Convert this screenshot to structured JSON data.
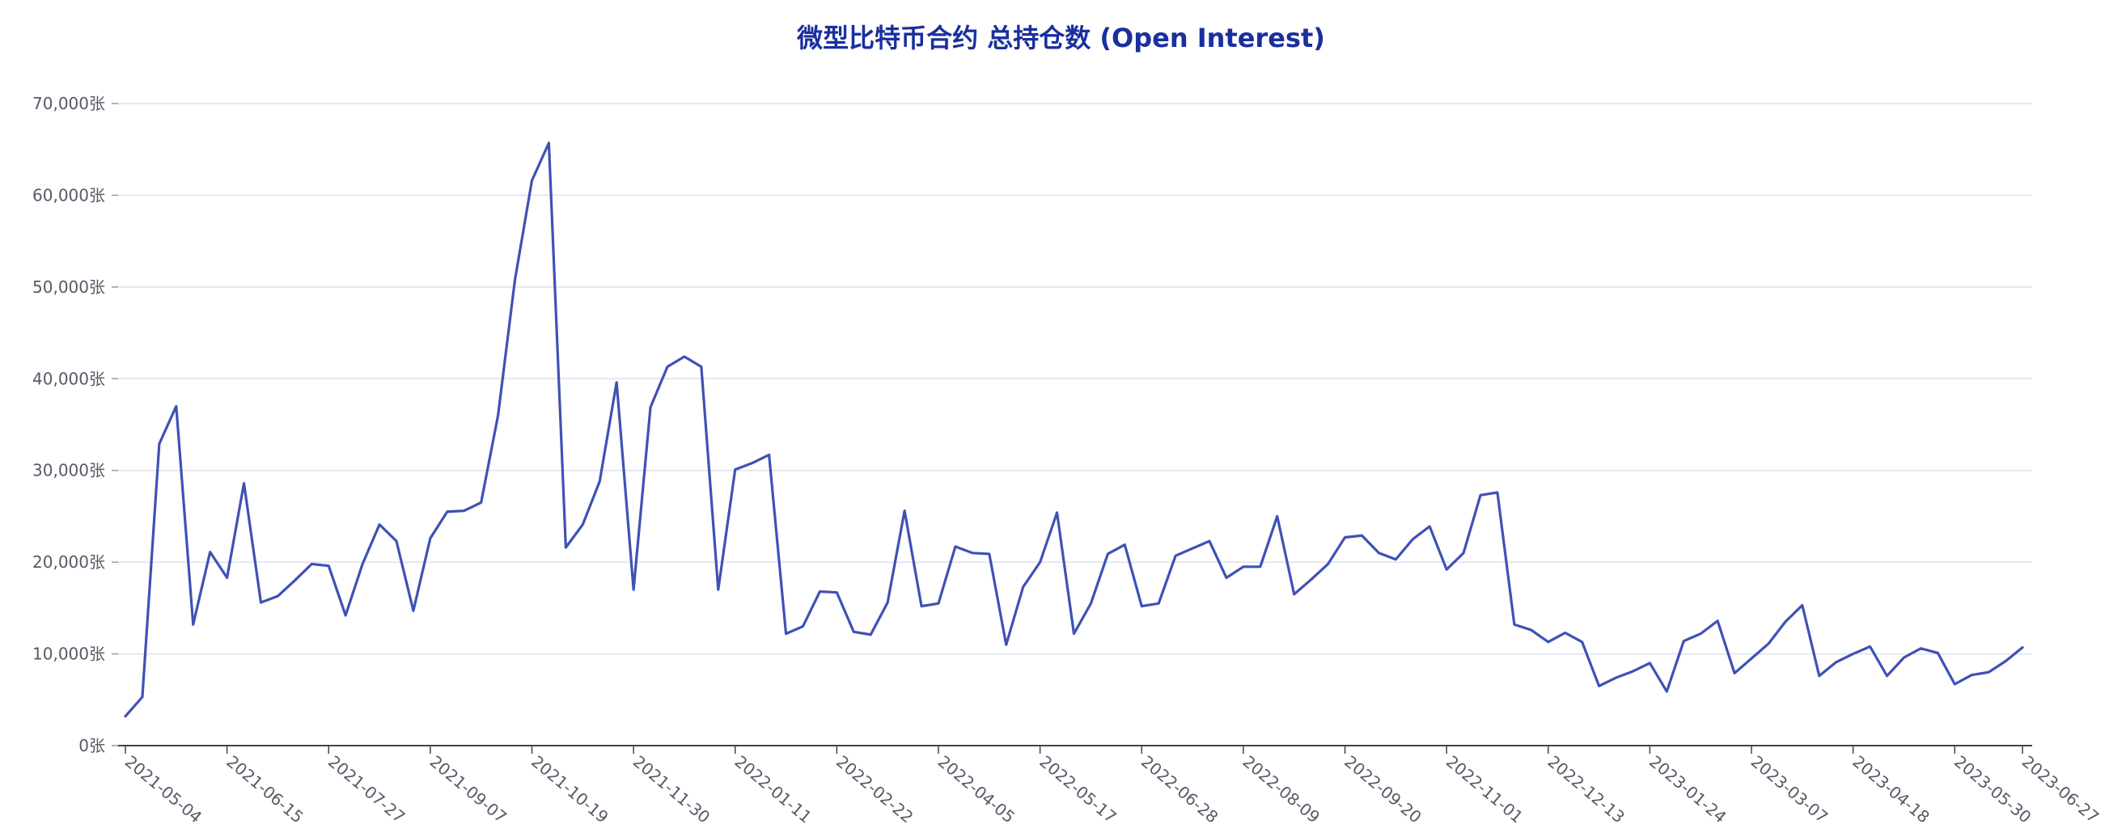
{
  "chart_data": {
    "type": "line",
    "title": "微型比特币合约 总持仓数 (Open Interest)",
    "xlabel": "",
    "ylabel": "",
    "y_unit": "张",
    "ylim": [
      0,
      70000
    ],
    "y_ticks": [
      "0张",
      "10,000张",
      "20,000张",
      "30,000张",
      "40,000张",
      "50,000张",
      "60,000张",
      "70,000张"
    ],
    "y_tick_values": [
      0,
      10000,
      20000,
      30000,
      40000,
      50000,
      60000,
      70000
    ],
    "grid": true,
    "x_ticks": [
      "2021-05-04",
      "2021-06-15",
      "2021-07-27",
      "2021-09-07",
      "2021-10-19",
      "2021-11-30",
      "2022-01-11",
      "2022-02-22",
      "2022-04-05",
      "2022-05-17",
      "2022-06-28",
      "2022-08-09",
      "2022-09-20",
      "2022-11-01",
      "2022-12-13",
      "2023-01-24",
      "2023-03-07",
      "2023-04-18",
      "2023-05-30",
      "2023-06-27"
    ],
    "x_start": "2021-05-04",
    "x_interval_days": 7,
    "line_color": "#3f51b5",
    "series": [
      {
        "values": [
          3200,
          5300,
          32900,
          37000,
          13200,
          21100,
          18300,
          28600,
          15600,
          16300,
          18000,
          19800,
          19600,
          14200,
          19800,
          24100,
          22300,
          14700,
          22600,
          25500,
          25600,
          26500,
          36000,
          50800,
          61600,
          65700,
          21600,
          24100,
          28800,
          39600,
          17000,
          36900,
          41300,
          42400,
          41300,
          17000,
          30100,
          30800,
          31700,
          12200,
          13000,
          16800,
          16700,
          12400,
          12100,
          15600,
          25600,
          15200,
          15500,
          21700,
          21000,
          20900,
          11000,
          17300,
          20000,
          25400,
          12200,
          15500,
          20900,
          21900,
          15200,
          15500,
          20700,
          21500,
          22300,
          18300,
          19500,
          19500,
          25000,
          16500,
          18100,
          19800,
          22700,
          22900,
          21000,
          20300,
          22500,
          23900,
          19200,
          21000,
          27300,
          27600,
          13200,
          12600,
          11300,
          12300,
          11300,
          6500,
          7400,
          8100,
          9000,
          5900,
          11400,
          12200,
          13600,
          7900,
          9500,
          11100,
          13500,
          15300,
          7600,
          9100,
          10000,
          10800,
          7600,
          9600,
          10600,
          10100,
          6700,
          7700,
          8000,
          9200,
          10700
        ]
      }
    ]
  }
}
